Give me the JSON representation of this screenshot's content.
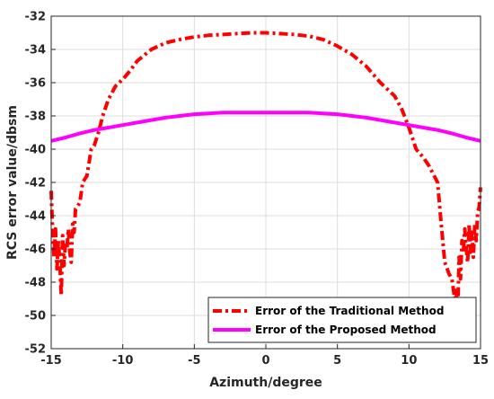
{
  "chart_data": {
    "type": "line",
    "xlabel": "Azimuth/degree",
    "ylabel": "RCS error value/dbsm",
    "xlim": [
      -15,
      15
    ],
    "ylim": [
      -52,
      -32
    ],
    "xticks": [
      -15,
      -10,
      -5,
      0,
      5,
      10,
      15
    ],
    "yticks": [
      -52,
      -50,
      -48,
      -46,
      -44,
      -42,
      -40,
      -38,
      -36,
      -34,
      -32
    ],
    "grid": true,
    "legend_position": "bottom-right",
    "series": [
      {
        "name": "Error of the Traditional Method",
        "color": "#ff0000",
        "style": "dash-dot",
        "x": [
          -15,
          -14.9,
          -14.8,
          -14.7,
          -14.6,
          -14.5,
          -14.4,
          -14.3,
          -14.2,
          -14.1,
          -14.0,
          -13.9,
          -13.8,
          -13.7,
          -13.6,
          -13.5,
          -13.4,
          -13.3,
          -13.2,
          -13.0,
          -12.8,
          -12.5,
          -12.2,
          -12.0,
          -11.7,
          -11.4,
          -11.0,
          -10.5,
          -10.0,
          -9.5,
          -9.0,
          -8.0,
          -7.0,
          -6.0,
          -5.0,
          -4.0,
          -3.0,
          -2.0,
          -1.0,
          0,
          1.0,
          2.0,
          3.0,
          4.0,
          5.0,
          6.0,
          7.0,
          8.0,
          9.0,
          9.5,
          10.0,
          10.5,
          11.0,
          11.4,
          11.7,
          12.0,
          12.2,
          12.5,
          12.8,
          13.0,
          13.2,
          13.3,
          13.4,
          13.5,
          13.6,
          13.7,
          13.8,
          13.9,
          14.0,
          14.1,
          14.2,
          14.3,
          14.4,
          14.5,
          14.6,
          14.7,
          14.8,
          14.9,
          15
        ],
        "values": [
          -42.5,
          -45.0,
          -46.5,
          -44.8,
          -47.2,
          -45.5,
          -46.8,
          -48.8,
          -45.2,
          -47.0,
          -45.6,
          -46.0,
          -44.8,
          -46.2,
          -46.8,
          -44.5,
          -45.0,
          -43.6,
          -43.5,
          -43.2,
          -42.0,
          -41.6,
          -40.0,
          -39.8,
          -39.0,
          -38.0,
          -37.0,
          -36.2,
          -35.8,
          -35.3,
          -34.7,
          -34.0,
          -33.6,
          -33.4,
          -33.25,
          -33.15,
          -33.1,
          -33.05,
          -33.0,
          -33.0,
          -33.05,
          -33.1,
          -33.2,
          -33.4,
          -33.8,
          -34.3,
          -35.0,
          -36.0,
          -36.8,
          -37.6,
          -38.7,
          -40.0,
          -40.5,
          -41.0,
          -41.5,
          -42.0,
          -44.0,
          -46.8,
          -47.5,
          -47.8,
          -49.0,
          -48.5,
          -50.3,
          -46.5,
          -47.8,
          -45.5,
          -46.2,
          -44.8,
          -46.0,
          -46.8,
          -44.5,
          -46.2,
          -45.0,
          -46.5,
          -44.5,
          -45.5,
          -43.8,
          -43.5,
          -42.3
        ]
      },
      {
        "name": "Error of the Proposed Method",
        "color": "#ff00ff",
        "style": "solid",
        "x": [
          -15,
          -14,
          -13,
          -12,
          -11,
          -10,
          -9,
          -8,
          -7,
          -6,
          -5,
          -4,
          -3,
          -2,
          -1,
          0,
          1,
          2,
          3,
          4,
          5,
          6,
          7,
          8,
          9,
          10,
          11,
          12,
          13,
          14,
          15
        ],
        "values": [
          -39.5,
          -39.3,
          -39.05,
          -38.85,
          -38.7,
          -38.55,
          -38.4,
          -38.25,
          -38.1,
          -38.0,
          -37.9,
          -37.85,
          -37.8,
          -37.8,
          -37.8,
          -37.8,
          -37.8,
          -37.8,
          -37.8,
          -37.85,
          -37.9,
          -38.0,
          -38.1,
          -38.25,
          -38.4,
          -38.55,
          -38.7,
          -38.85,
          -39.05,
          -39.3,
          -39.5
        ]
      }
    ]
  }
}
